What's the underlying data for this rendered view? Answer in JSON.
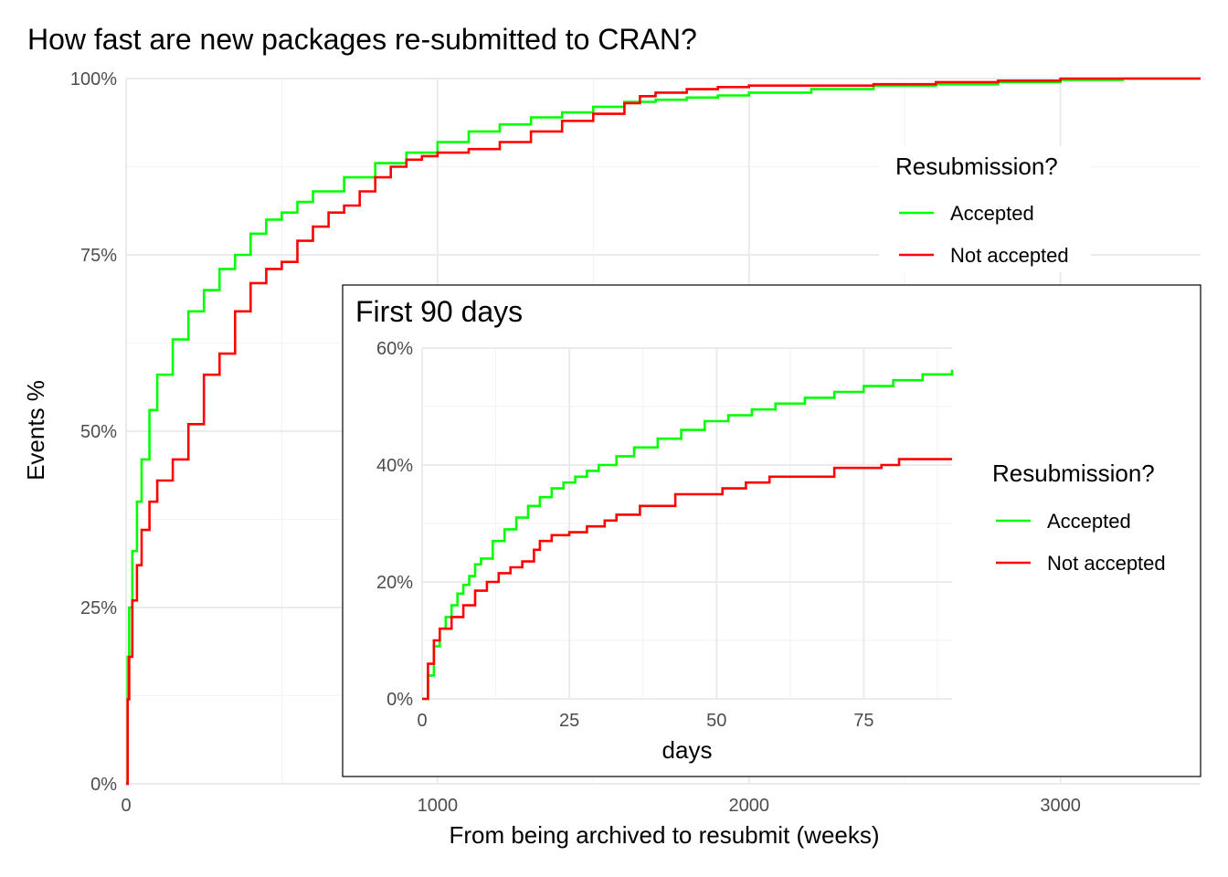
{
  "colors": {
    "accepted": "#00FF00",
    "not_accepted": "#FF0000",
    "grid_major": "#EBEBEB",
    "grid_minor": "#F4F4F4"
  },
  "chart_data": [
    {
      "type": "line",
      "title": "How fast are new packages re-submitted to CRAN?",
      "xlabel": "From being archived to resubmit (weeks)",
      "ylabel": "Events %",
      "xlim": [
        0,
        3450
      ],
      "ylim": [
        0,
        100
      ],
      "x_ticks": [
        0,
        1000,
        2000,
        3000
      ],
      "x_tick_labels": [
        "0",
        "1000",
        "2000",
        "3000"
      ],
      "y_ticks": [
        0,
        25,
        50,
        75,
        100
      ],
      "y_tick_labels": [
        "0%",
        "25%",
        "50%",
        "75%",
        "100%"
      ],
      "grid": true,
      "legend": {
        "title": "Resubmission?",
        "labels": [
          "Accepted",
          "Not accepted"
        ],
        "position": "top-right"
      },
      "series": [
        {
          "name": "Accepted",
          "color": "#00FF00",
          "x": [
            0,
            5,
            10,
            20,
            35,
            50,
            75,
            100,
            150,
            200,
            250,
            300,
            350,
            400,
            450,
            500,
            550,
            600,
            700,
            800,
            900,
            1000,
            1100,
            1200,
            1300,
            1400,
            1500,
            1600,
            1700,
            1800,
            1900,
            2000,
            2200,
            2400,
            2600,
            2800,
            3000,
            3200,
            3450
          ],
          "values": [
            0,
            18,
            25,
            33,
            40,
            46,
            53,
            58,
            63,
            67,
            70,
            73,
            75,
            78,
            80,
            81,
            82.5,
            84,
            86,
            88,
            89.5,
            91,
            92.5,
            93.5,
            94.5,
            95.2,
            96,
            96.7,
            97,
            97.3,
            97.6,
            98,
            98.5,
            99,
            99.2,
            99.5,
            99.8,
            100,
            100
          ]
        },
        {
          "name": "Not accepted",
          "color": "#FF0000",
          "x": [
            0,
            5,
            10,
            20,
            35,
            50,
            75,
            100,
            150,
            200,
            250,
            300,
            350,
            400,
            450,
            500,
            550,
            600,
            650,
            700,
            750,
            800,
            850,
            900,
            950,
            1000,
            1100,
            1200,
            1300,
            1400,
            1500,
            1600,
            1650,
            1700,
            1800,
            1900,
            2000,
            2200,
            2400,
            2600,
            2800,
            3000,
            3200,
            3450
          ],
          "values": [
            0,
            12,
            18,
            26,
            31,
            36,
            40,
            43,
            46,
            51,
            58,
            61,
            67,
            71,
            73,
            74,
            77,
            79,
            81,
            82,
            84,
            86,
            87.5,
            88.5,
            89,
            89.5,
            90,
            91,
            92.5,
            94,
            95,
            96.5,
            97.5,
            98,
            98.5,
            98.8,
            99,
            99,
            99.2,
            99.5,
            99.7,
            100,
            100,
            100
          ]
        }
      ]
    },
    {
      "type": "line",
      "title": "First 90 days",
      "xlabel": "days",
      "ylabel": "",
      "xlim": [
        0,
        90
      ],
      "ylim": [
        0,
        60
      ],
      "x_ticks": [
        0,
        25,
        50,
        75
      ],
      "x_tick_labels": [
        "0",
        "25",
        "50",
        "75"
      ],
      "y_ticks": [
        0,
        20,
        40,
        60
      ],
      "y_tick_labels": [
        "0%",
        "20%",
        "40%",
        "60%"
      ],
      "grid": true,
      "legend": {
        "title": "Resubmission?",
        "labels": [
          "Accepted",
          "Not accepted"
        ],
        "position": "right"
      },
      "series": [
        {
          "name": "Accepted",
          "color": "#00FF00",
          "x": [
            0,
            1,
            2,
            3,
            4,
            5,
            6,
            7,
            8,
            9,
            10,
            12,
            14,
            16,
            18,
            20,
            22,
            24,
            26,
            28,
            30,
            33,
            36,
            40,
            44,
            48,
            52,
            56,
            60,
            65,
            70,
            75,
            80,
            85,
            90
          ],
          "values": [
            0,
            4,
            9,
            12,
            14,
            16,
            18,
            19.5,
            21,
            23,
            24,
            27,
            29,
            31,
            33,
            34.5,
            36,
            37,
            38,
            39,
            40,
            41.5,
            43,
            44.5,
            46,
            47.5,
            48.5,
            49.5,
            50.5,
            51.5,
            52.5,
            53.5,
            54.5,
            55.5,
            56.3
          ]
        },
        {
          "name": "Not accepted",
          "color": "#FF0000",
          "x": [
            0,
            1,
            2,
            3,
            5,
            7,
            9,
            11,
            13,
            15,
            17,
            19,
            20,
            22,
            25,
            28,
            31,
            33,
            37,
            40,
            43,
            47,
            51,
            55,
            59,
            62,
            64,
            70,
            73,
            76,
            78,
            81,
            85,
            90
          ],
          "values": [
            0,
            6,
            10,
            12,
            14,
            16,
            18.5,
            20,
            21.5,
            22.5,
            23.5,
            25.5,
            27,
            28,
            28.5,
            29.5,
            30.5,
            31.5,
            33,
            33,
            35,
            35,
            36,
            37,
            38,
            38,
            38,
            39.5,
            39.5,
            39.5,
            40,
            41,
            41,
            41
          ]
        }
      ]
    }
  ]
}
